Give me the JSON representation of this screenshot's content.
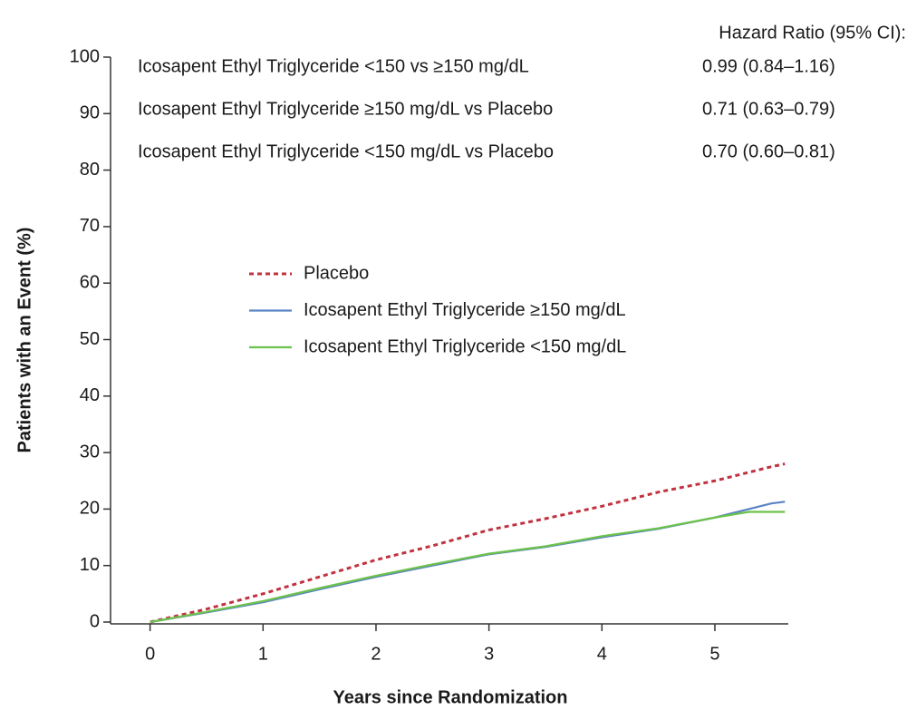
{
  "chart_data": {
    "type": "line",
    "y_label": "Patients with an Event (%)",
    "x_label": "Years since Randomization",
    "x": [
      0,
      0.5,
      1,
      1.5,
      2,
      2.5,
      3,
      3.5,
      4,
      4.5,
      5,
      5.3,
      5.5,
      5.62
    ],
    "series": [
      {
        "name": "Placebo",
        "color": "#c0323f",
        "dashed": true,
        "values": [
          0,
          2.3,
          5,
          8,
          11,
          13.5,
          16.3,
          18.3,
          20.5,
          23,
          25,
          26.5,
          27.5,
          28
        ]
      },
      {
        "name": "Icosapent Ethyl Triglyceride ≥150 mg/dL",
        "color": "#5b84c4",
        "dashed": false,
        "values": [
          0,
          1.7,
          3.5,
          5.8,
          8,
          10,
          12,
          13.3,
          15,
          16.5,
          18.5,
          20,
          21,
          21.3
        ]
      },
      {
        "name": "Icosapent Ethyl Triglyceride <150 mg/dL",
        "color": "#6cc24a",
        "dashed": false,
        "values": [
          0,
          1.8,
          3.7,
          6,
          8.2,
          10.2,
          12.1,
          13.4,
          15.2,
          16.6,
          18.5,
          19.5,
          19.5,
          19.5
        ]
      }
    ],
    "xlim": [
      -0.35,
      5.65
    ],
    "xticks": [
      0,
      1,
      2,
      3,
      4,
      5
    ],
    "ylim": [
      0,
      100
    ],
    "yticks": [
      0,
      10,
      20,
      30,
      40,
      50,
      60,
      70,
      80,
      90,
      100
    ],
    "hazard_ratio_header": "Hazard Ratio (95% CI):",
    "hazard_ratios": [
      {
        "label": "Icosapent Ethyl Triglyceride <150 vs ≥150 mg/dL",
        "value": "0.99 (0.84–1.16)"
      },
      {
        "label": "Icosapent Ethyl Triglyceride ≥150 mg/dL vs Placebo",
        "value": "0.71 (0.63–0.79)"
      },
      {
        "label": "Icosapent Ethyl Triglyceride <150 mg/dL vs Placebo",
        "value": "0.70 (0.60–0.81)"
      }
    ]
  }
}
